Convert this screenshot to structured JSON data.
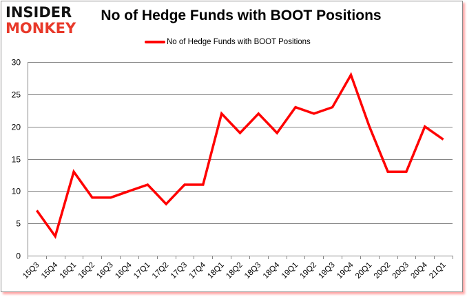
{
  "brand": {
    "line1": "INSIDER",
    "line2": "MONKEY"
  },
  "colors": {
    "series": "#ff0000",
    "grid": "#868686",
    "logo_red": "#e8392a"
  },
  "chart_data": {
    "type": "line",
    "title": "No of Hedge Funds with BOOT Positions",
    "xlabel": "",
    "ylabel": "",
    "ylim": [
      0,
      30
    ],
    "yticks": [
      0,
      5,
      10,
      15,
      20,
      25,
      30
    ],
    "grid": true,
    "legend_position": "top",
    "categories": [
      "15Q3",
      "15Q4",
      "16Q1",
      "16Q2",
      "16Q3",
      "16Q4",
      "17Q1",
      "17Q2",
      "17Q3",
      "17Q4",
      "18Q1",
      "18Q2",
      "18Q3",
      "18Q4",
      "19Q1",
      "19Q2",
      "19Q3",
      "19Q4",
      "20Q1",
      "20Q2",
      "20Q3",
      "20Q4",
      "21Q1"
    ],
    "series": [
      {
        "name": "No of Hedge Funds with BOOT Positions",
        "values": [
          7,
          3,
          13,
          9,
          9,
          10,
          11,
          8,
          11,
          11,
          22,
          19,
          22,
          19,
          23,
          22,
          23,
          28,
          20,
          13,
          13,
          20,
          18
        ]
      }
    ]
  }
}
